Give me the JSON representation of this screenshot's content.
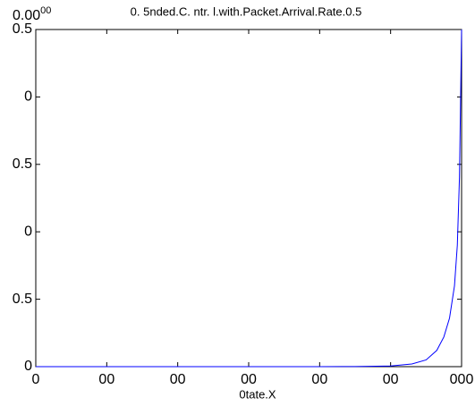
{
  "chart_data": {
    "type": "line",
    "title": "0. 5nded.C. ntr. l.with.Packet.Arrival.Rate.0.5",
    "x_label": "0tate.X",
    "y_exponent": {
      "base": "0.00",
      "exponent": "00"
    },
    "x": [
      0,
      100,
      200,
      300,
      400,
      450,
      500,
      530,
      550,
      565,
      575,
      583,
      590,
      594,
      597,
      600
    ],
    "series": [
      {
        "color": "#0000ff",
        "values": [
          0,
          0,
          0,
          0,
          0,
          1e-06,
          5e-06,
          2e-05,
          5e-05,
          0.00012,
          0.00022,
          0.00036,
          0.0006,
          0.0009,
          0.0014,
          0.0025
        ]
      }
    ],
    "xlim": [
      0,
      600
    ],
    "xticks": [
      0,
      {
        "value": 100,
        "label": "00"
      },
      {
        "value": 200,
        "label": "00"
      },
      {
        "value": 300,
        "label": "00"
      },
      {
        "value": 400,
        "label": "00"
      },
      {
        "value": 500,
        "label": "00"
      },
      {
        "value": 600,
        "label": "000"
      }
    ],
    "ylim": [
      0,
      0.0025
    ],
    "yticks": [
      0,
      {
        "value": 0.0005,
        "label": "0.5"
      },
      {
        "value": 0.001,
        "label": "0"
      },
      {
        "value": 0.0015,
        "label": "0.5"
      },
      {
        "value": 0.002,
        "label": "0"
      },
      {
        "value": 0.0025,
        "label": "0.5"
      }
    ]
  }
}
